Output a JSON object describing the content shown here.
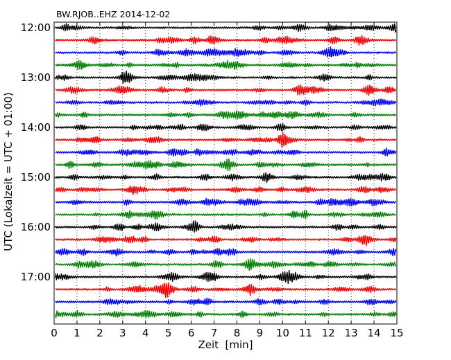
{
  "chart_data": {
    "type": "line",
    "title": "BW.RJOB..EHZ 2014-12-02",
    "xlabel": "Zeit  [min]",
    "ylabel": "UTC (Lokalzeit = UTC + 01:00)",
    "xlim": [
      0,
      15
    ],
    "x_ticks": [
      "0",
      "1",
      "2",
      "3",
      "4",
      "5",
      "6",
      "7",
      "8",
      "9",
      "10",
      "11",
      "12",
      "13",
      "14",
      "15"
    ],
    "y_ticks": [
      "12:00",
      "13:00",
      "14:00",
      "15:00",
      "16:00",
      "17:00"
    ],
    "grid": "vertical dotted",
    "trace_interval_minutes": 15,
    "start_time": "12:00",
    "trace_count": 24,
    "trace_colors": [
      "#000000",
      "#ff0000",
      "#0000ff",
      "#008000"
    ]
  }
}
